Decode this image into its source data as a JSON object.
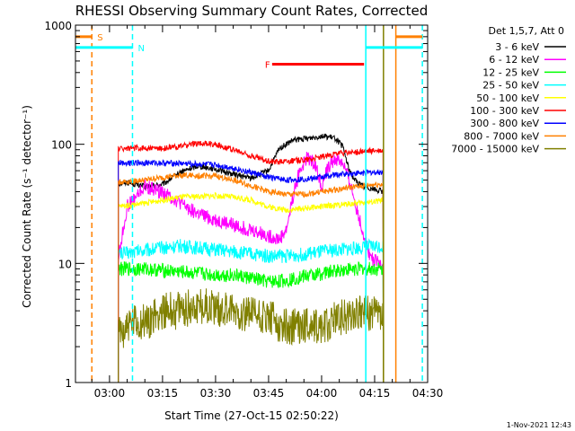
{
  "chart_data": {
    "type": "line",
    "title": "RHESSI Observing Summary Count Rates, Corrected",
    "xlabel": "Start Time (27-Oct-15 02:50:22)",
    "ylabel": "Corrected Count Rate (s⁻¹ detector⁻¹)",
    "x_ticks": [
      "03:00",
      "03:15",
      "03:30",
      "03:45",
      "04:00",
      "04:15",
      "04:30"
    ],
    "x_tick_minutes": [
      180,
      195,
      210,
      225,
      240,
      255,
      270
    ],
    "xlim_minutes": [
      170.37,
      270
    ],
    "y_scale": "log",
    "ylim": [
      1,
      1000
    ],
    "y_ticks": [
      "1",
      "10",
      "100",
      "1000"
    ],
    "y_tick_values": [
      1,
      10,
      100,
      1000
    ],
    "legend_title": "Det 1,5,7, Att 0",
    "legend_position": "right",
    "data_start_minute": 182.5,
    "data_end_minute": 257.5,
    "series": [
      {
        "name": "3 - 6 keV",
        "color": "#000000",
        "x": [
          182.5,
          185,
          190,
          195,
          200,
          205,
          210,
          215,
          220,
          225,
          228,
          232,
          236,
          240,
          244,
          246,
          248,
          250,
          252,
          254,
          256,
          257.5
        ],
        "y": [
          47,
          48,
          44,
          46,
          58,
          66,
          62,
          56,
          52,
          60,
          92,
          108,
          112,
          118,
          112,
          95,
          58,
          48,
          44,
          43,
          41,
          40
        ]
      },
      {
        "name": "6 - 12 keV",
        "color": "#ff00ff",
        "x": [
          182.5,
          185,
          190,
          195,
          200,
          205,
          210,
          215,
          220,
          225,
          228,
          230,
          232,
          234,
          236,
          238,
          240,
          242,
          244,
          246,
          248,
          250,
          252,
          254,
          256,
          257.5
        ],
        "y": [
          11,
          30,
          44,
          40,
          32,
          26,
          23,
          21,
          19,
          17,
          16,
          19,
          38,
          62,
          78,
          70,
          45,
          65,
          75,
          70,
          48,
          28,
          17,
          11,
          10,
          10
        ]
      },
      {
        "name": "12 - 25 keV",
        "color": "#00ff00",
        "x": [
          182.5,
          190,
          200,
          210,
          215,
          220,
          225,
          230,
          235,
          240,
          245,
          250,
          255,
          257.5
        ],
        "y": [
          9,
          9,
          8.5,
          8,
          8,
          7.5,
          7,
          7.2,
          7.8,
          8.2,
          8.8,
          9,
          9,
          8.8
        ]
      },
      {
        "name": "25 - 50 keV",
        "color": "#00ffff",
        "x": [
          182.5,
          190,
          200,
          210,
          215,
          220,
          225,
          230,
          235,
          240,
          245,
          250,
          255,
          257.5
        ],
        "y": [
          12,
          13,
          14,
          13,
          12.5,
          12,
          11.5,
          11.5,
          12,
          12.5,
          13,
          13.5,
          14,
          14
        ]
      },
      {
        "name": "50 - 100 keV",
        "color": "#ffff00",
        "x": [
          182.5,
          190,
          200,
          210,
          215,
          220,
          225,
          230,
          235,
          240,
          245,
          250,
          255,
          257.5
        ],
        "y": [
          30,
          32,
          36,
          37,
          36,
          34,
          30,
          28,
          29,
          30,
          31,
          32,
          33,
          34
        ]
      },
      {
        "name": "100 - 300 keV",
        "color": "#ff0000",
        "x": [
          182.5,
          190,
          195,
          200,
          205,
          210,
          215,
          220,
          225,
          230,
          235,
          240,
          245,
          250,
          255,
          257.5
        ],
        "y": [
          92,
          93,
          92,
          96,
          102,
          100,
          90,
          80,
          72,
          72,
          74,
          78,
          84,
          86,
          88,
          88
        ]
      },
      {
        "name": "300 - 800 keV",
        "color": "#0000ff",
        "x": [
          182.5,
          190,
          200,
          210,
          215,
          220,
          225,
          230,
          235,
          240,
          245,
          250,
          255,
          257.5
        ],
        "y": [
          70,
          70,
          69,
          67,
          63,
          58,
          53,
          50,
          51,
          53,
          56,
          57,
          58,
          58
        ]
      },
      {
        "name": "800 - 7000 keV",
        "color": "#ff8000",
        "x": [
          182.5,
          190,
          200,
          210,
          215,
          220,
          225,
          230,
          235,
          240,
          245,
          250,
          255,
          257.5
        ],
        "y": [
          48,
          50,
          55,
          54,
          50,
          45,
          40,
          38,
          38,
          40,
          42,
          44,
          46,
          46
        ]
      },
      {
        "name": "7000 - 15000 keV",
        "color": "#808000",
        "x": [
          182.5,
          185,
          190,
          195,
          200,
          205,
          210,
          215,
          220,
          225,
          230,
          235,
          240,
          245,
          250,
          255,
          257.5
        ],
        "y": [
          2.5,
          3,
          3.2,
          4,
          4,
          4.5,
          4.2,
          4,
          3.8,
          3.4,
          3,
          3,
          3,
          3.5,
          3.8,
          3.8,
          3.5
        ]
      }
    ],
    "intervals": [
      {
        "label": "S",
        "color": "#ff8000",
        "start_minute": 170.37,
        "end_minute": 175.0,
        "level": 800
      },
      {
        "label": "",
        "color": "#ff8000",
        "start_minute": 261.0,
        "end_minute": 268.5,
        "level": 800
      },
      {
        "label": "N",
        "color": "#00ffff",
        "start_minute": 170.37,
        "end_minute": 186.5,
        "level": 650
      },
      {
        "label": "",
        "color": "#00ffff",
        "start_minute": 252.5,
        "end_minute": 268.5,
        "level": 650
      },
      {
        "label": "F",
        "color": "#ff0000",
        "start_minute": 226.0,
        "end_minute": 252.0,
        "level": 470
      }
    ],
    "vlines": [
      {
        "color": "#ff8000",
        "minute": 175.0,
        "dashed": true
      },
      {
        "color": "#00ffff",
        "minute": 186.5,
        "dashed": true
      },
      {
        "color": "#00ffff",
        "minute": 252.5,
        "dashed": false
      },
      {
        "color": "#808000",
        "minute": 257.5,
        "dashed": false
      },
      {
        "color": "#ff8000",
        "minute": 261.0,
        "dashed": false
      },
      {
        "color": "#00ffff",
        "minute": 268.5,
        "dashed": true
      }
    ],
    "grid": false
  },
  "footer": {
    "timestamp": "1-Nov-2021 12:43"
  }
}
